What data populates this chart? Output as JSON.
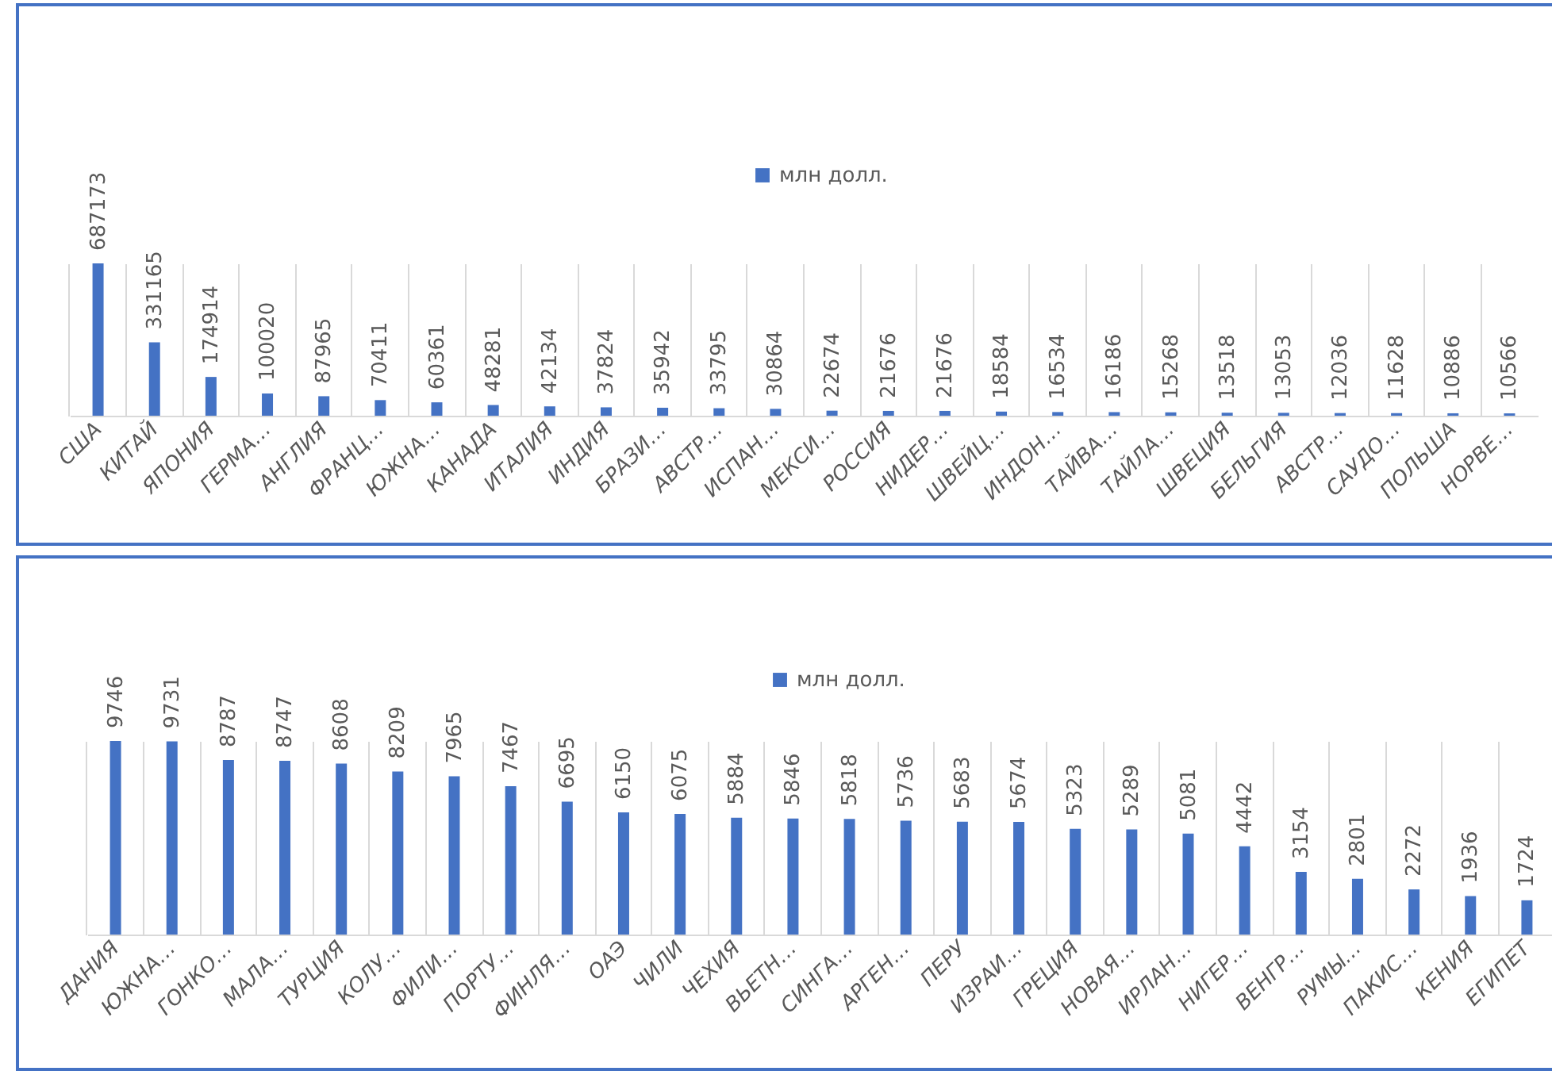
{
  "chart_data": [
    {
      "type": "bar",
      "categories": [
        "США",
        "КИТАЙ",
        "ЯПОНИЯ",
        "ГЕРМА…",
        "АНГЛИЯ",
        "ФРАНЦ…",
        "ЮЖНА…",
        "КАНАДА",
        "ИТАЛИЯ",
        "ИНДИЯ",
        "БРАЗИ…",
        "АВСТР…",
        "ИСПАН…",
        "МЕКСИ…",
        "РОССИЯ",
        "НИДЕР…",
        "ШВЕЙЦ…",
        "ИНДОН…",
        "ТАЙВА…",
        "ТАЙЛА…",
        "ШВЕЦИЯ",
        "БЕЛЬГИЯ",
        "АВСТР…",
        "САУДО…",
        "ПОЛЬША",
        "НОРВЕ…"
      ],
      "series": [
        {
          "name": "млн долл.",
          "color": "#4472c4",
          "values": [
            687173,
            331165,
            174914,
            100020,
            87965,
            70411,
            60361,
            48281,
            42134,
            37824,
            35942,
            33795,
            30864,
            22674,
            21676,
            21676,
            18584,
            16534,
            16186,
            15268,
            13518,
            13053,
            12036,
            11628,
            10886,
            10566
          ]
        }
      ],
      "data_labels": true,
      "legend": "top",
      "grid": "x"
    },
    {
      "type": "bar",
      "categories": [
        "ДАНИЯ",
        "ЮЖНА…",
        "ГОНКО…",
        "МАЛА…",
        "ТУРЦИЯ",
        "КОЛУ…",
        "ФИЛИ…",
        "ПОРТУ…",
        "ФИНЛЯ…",
        "ОАЭ",
        "ЧИЛИ",
        "ЧЕХИЯ",
        "ВЬЕТН…",
        "СИНГА…",
        "АРГЕН…",
        "ПЕРУ",
        "ИЗРАИ…",
        "ГРЕЦИЯ",
        "НОВАЯ…",
        "ИРЛАН…",
        "НИГЕР…",
        "ВЕНГР…",
        "РУМЫ…",
        "ПАКИС…",
        "КЕНИЯ",
        "ЕГИПЕТ"
      ],
      "series": [
        {
          "name": "млн долл.",
          "color": "#4472c4",
          "values": [
            9746,
            9731,
            8787,
            8747,
            8608,
            8209,
            7965,
            7467,
            6695,
            6150,
            6075,
            5884,
            5846,
            5818,
            5736,
            5683,
            5674,
            5323,
            5289,
            5081,
            4442,
            3154,
            2801,
            2272,
            1936,
            1724
          ]
        }
      ],
      "data_labels": true,
      "legend": "top",
      "grid": "x"
    }
  ]
}
